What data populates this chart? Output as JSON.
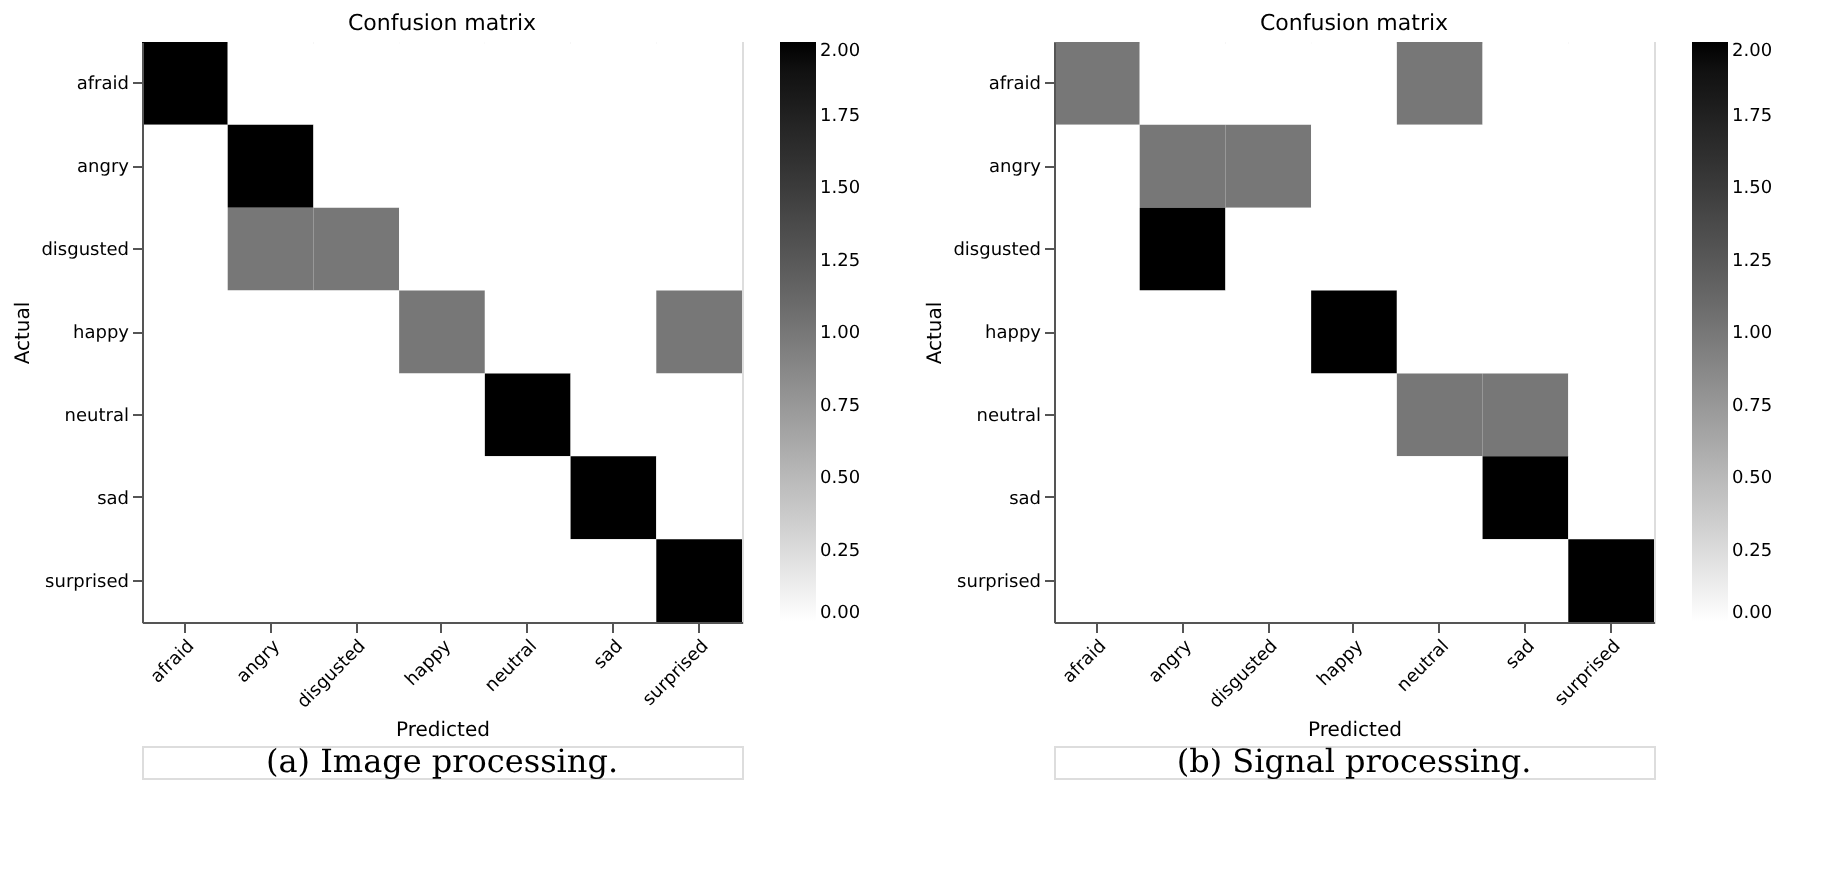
{
  "chart_data": [
    {
      "type": "heatmap",
      "title": "Confusion matrix",
      "xlabel": "Predicted",
      "ylabel": "Actual",
      "categories": [
        "afraid",
        "angry",
        "disgusted",
        "happy",
        "neutral",
        "sad",
        "surprised"
      ],
      "y_categories": [
        "afraid",
        "angry",
        "disgusted",
        "happy",
        "neutral",
        "sad",
        "surprised"
      ],
      "cells": [
        [
          2,
          0,
          0,
          0,
          0,
          0,
          0
        ],
        [
          0,
          2,
          0,
          0,
          0,
          0,
          0
        ],
        [
          0,
          1,
          1,
          0,
          0,
          0,
          0
        ],
        [
          0,
          0,
          0,
          1,
          0,
          0,
          1
        ],
        [
          0,
          0,
          0,
          0,
          2,
          0,
          0
        ],
        [
          0,
          0,
          0,
          0,
          0,
          2,
          0
        ],
        [
          0,
          0,
          0,
          0,
          0,
          0,
          2
        ]
      ],
      "clim": [
        0,
        2
      ],
      "cticks": [
        {
          "value": 0,
          "label": "0.00"
        },
        {
          "value": 0.25,
          "label": "0.25"
        },
        {
          "value": 0.5,
          "label": "0.50"
        },
        {
          "value": 0.75,
          "label": "0.75"
        },
        {
          "value": 1,
          "label": "1.00"
        },
        {
          "value": 1.25,
          "label": "1.25"
        },
        {
          "value": 1.5,
          "label": "1.50"
        },
        {
          "value": 1.75,
          "label": "1.75"
        },
        {
          "value": 2,
          "label": "2.00"
        }
      ],
      "annotations": [
        "(a) Image processing."
      ]
    },
    {
      "type": "heatmap",
      "title": "Confusion matrix",
      "xlabel": "Predicted",
      "ylabel": "Actual",
      "categories": [
        "afraid",
        "angry",
        "disgusted",
        "happy",
        "neutral",
        "sad",
        "surprised"
      ],
      "y_categories": [
        "afraid",
        "angry",
        "disgusted",
        "happy",
        "neutral",
        "sad",
        "surprised"
      ],
      "cells": [
        [
          1,
          0,
          0,
          0,
          1,
          0,
          0
        ],
        [
          0,
          1,
          1,
          0,
          0,
          0,
          0
        ],
        [
          0,
          2,
          0,
          0,
          0,
          0,
          0
        ],
        [
          0,
          0,
          0,
          2,
          0,
          0,
          0
        ],
        [
          0,
          0,
          0,
          0,
          1,
          1,
          0
        ],
        [
          0,
          0,
          0,
          0,
          0,
          2,
          0
        ],
        [
          0,
          0,
          0,
          0,
          0,
          0,
          2
        ]
      ],
      "clim": [
        0,
        2
      ],
      "cticks": [
        {
          "value": 0,
          "label": "0.00"
        },
        {
          "value": 0.25,
          "label": "0.25"
        },
        {
          "value": 0.5,
          "label": "0.50"
        },
        {
          "value": 0.75,
          "label": "0.75"
        },
        {
          "value": 1,
          "label": "1.00"
        },
        {
          "value": 1.25,
          "label": "1.25"
        },
        {
          "value": 1.5,
          "label": "1.50"
        },
        {
          "value": 1.75,
          "label": "1.75"
        },
        {
          "value": 2,
          "label": "2.00"
        }
      ],
      "annotations": [
        "(b) Signal processing."
      ]
    }
  ]
}
